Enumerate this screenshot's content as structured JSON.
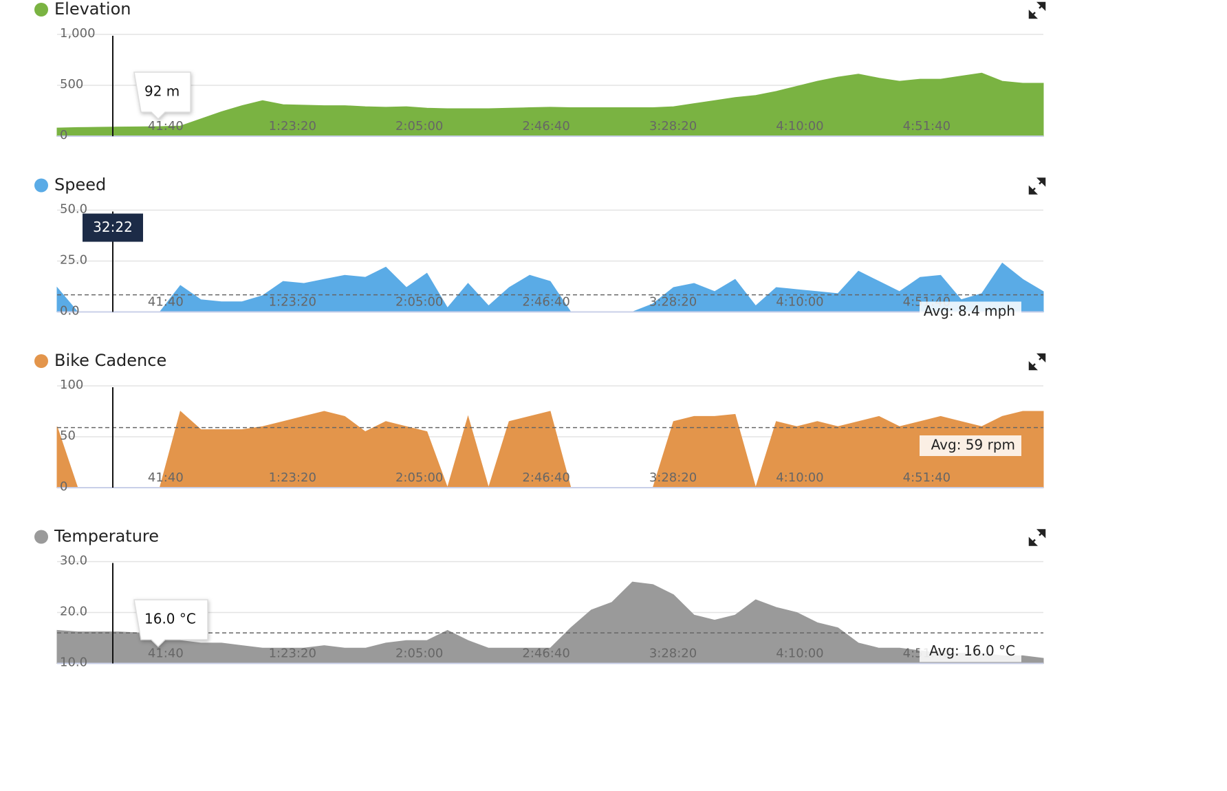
{
  "chart_data": [
    {
      "type": "area",
      "title": "Elevation",
      "color": "#7ab342",
      "x": [
        360,
        765,
        1170,
        1575,
        1980,
        2385,
        2790,
        3195,
        3600,
        4005,
        4410,
        4815,
        5220,
        5625,
        6030,
        6435,
        6840,
        7245,
        7650,
        8055,
        8460,
        8865,
        9270,
        9675,
        10080,
        10485,
        10890,
        11295,
        11700,
        12105,
        12510,
        12915,
        13320,
        13725,
        14130,
        14535,
        14940,
        15345,
        15750,
        16155,
        16560,
        16965,
        17370,
        17775,
        18180,
        18585,
        18990,
        19395,
        19800
      ],
      "values": [
        80,
        85,
        88,
        90,
        92,
        95,
        100,
        170,
        240,
        300,
        350,
        310,
        305,
        300,
        300,
        290,
        285,
        290,
        275,
        270,
        270,
        270,
        275,
        280,
        285,
        280,
        280,
        280,
        280,
        280,
        290,
        320,
        350,
        380,
        400,
        440,
        490,
        540,
        580,
        610,
        570,
        540,
        560,
        560,
        590,
        620,
        540,
        520,
        520
      ],
      "xlim": [
        360,
        19800
      ],
      "xticks": [
        {
          "value": 2500,
          "label": "41:40"
        },
        {
          "value": 5000,
          "label": "1:23:20"
        },
        {
          "value": 7500,
          "label": "2:05:00"
        },
        {
          "value": 10000,
          "label": "2:46:40"
        },
        {
          "value": 12500,
          "label": "3:28:20"
        },
        {
          "value": 15000,
          "label": "4:10:00"
        },
        {
          "value": 17500,
          "label": "4:51:40"
        }
      ],
      "ylim": [
        0,
        1000
      ],
      "yticks": [
        0,
        500,
        {
          "value": 1000,
          "label": "1,000"
        }
      ],
      "grid": true,
      "tooltip": "92 m"
    },
    {
      "type": "area",
      "title": "Speed",
      "color": "#5aabe6",
      "x": [
        360,
        765,
        1170,
        1575,
        1980,
        2385,
        2790,
        3195,
        3600,
        4005,
        4410,
        4815,
        5220,
        5625,
        6030,
        6435,
        6840,
        7245,
        7650,
        8055,
        8460,
        8865,
        9270,
        9675,
        10080,
        10485,
        10890,
        11295,
        11700,
        12105,
        12510,
        12915,
        13320,
        13725,
        14130,
        14535,
        14940,
        15345,
        15750,
        16155,
        16560,
        16965,
        17370,
        17775,
        18180,
        18585,
        18990,
        19395,
        19800
      ],
      "values": [
        12,
        0,
        0,
        0,
        0,
        0,
        13,
        6,
        5,
        5,
        8,
        15,
        14,
        16,
        18,
        17,
        22,
        12,
        19,
        2,
        14,
        3,
        12,
        18,
        15,
        0,
        0,
        0,
        0,
        4,
        12,
        14,
        10,
        16,
        3,
        12,
        11,
        10,
        9,
        20,
        15,
        10,
        17,
        18,
        6,
        9,
        24,
        16,
        10
      ],
      "xlim": [
        360,
        19800
      ],
      "xticks": [
        {
          "value": 2500,
          "label": "41:40"
        },
        {
          "value": 5000,
          "label": "1:23:20"
        },
        {
          "value": 7500,
          "label": "2:05:00"
        },
        {
          "value": 10000,
          "label": "2:46:40"
        },
        {
          "value": 12500,
          "label": "3:28:20"
        },
        {
          "value": 15000,
          "label": "4:10:00"
        },
        {
          "value": 17500,
          "label": "4:51:40"
        }
      ],
      "ylim": [
        0,
        50
      ],
      "yticks": [
        {
          "value": 0,
          "label": "0.0"
        },
        {
          "value": 25,
          "label": "25.0"
        },
        {
          "value": 50,
          "label": "50.0"
        }
      ],
      "grid": true,
      "tooltip": "32:22",
      "avg": 8.4,
      "avg_label": "Avg: 8.4 mph"
    },
    {
      "type": "area",
      "title": "Bike Cadence",
      "color": "#e3954b",
      "x": [
        360,
        765,
        1170,
        1575,
        1980,
        2385,
        2790,
        3195,
        3600,
        4005,
        4410,
        4815,
        5220,
        5625,
        6030,
        6435,
        6840,
        7245,
        7650,
        8055,
        8460,
        8865,
        9270,
        9675,
        10080,
        10485,
        10890,
        11295,
        11700,
        12105,
        12510,
        12915,
        13320,
        13725,
        14130,
        14535,
        14940,
        15345,
        15750,
        16155,
        16560,
        16965,
        17370,
        17775,
        18180,
        18585,
        18990,
        19395,
        19800
      ],
      "values": [
        60,
        0,
        0,
        0,
        0,
        0,
        75,
        57,
        57,
        57,
        60,
        65,
        70,
        75,
        70,
        55,
        65,
        60,
        55,
        0,
        70,
        0,
        65,
        70,
        75,
        0,
        0,
        0,
        0,
        0,
        65,
        70,
        70,
        72,
        0,
        65,
        60,
        65,
        60,
        65,
        70,
        60,
        65,
        70,
        65,
        60,
        70,
        75,
        75
      ],
      "xlim": [
        360,
        19800
      ],
      "xticks": [
        {
          "value": 2500,
          "label": "41:40"
        },
        {
          "value": 5000,
          "label": "1:23:20"
        },
        {
          "value": 7500,
          "label": "2:05:00"
        },
        {
          "value": 10000,
          "label": "2:46:40"
        },
        {
          "value": 12500,
          "label": "3:28:20"
        },
        {
          "value": 15000,
          "label": "4:10:00"
        },
        {
          "value": 17500,
          "label": "4:51:40"
        }
      ],
      "ylim": [
        0,
        100
      ],
      "yticks": [
        0,
        50,
        100
      ],
      "grid": true,
      "avg": 59,
      "avg_label": "Avg: 59 rpm"
    },
    {
      "type": "area",
      "title": "Temperature",
      "color": "#9a9a9a",
      "x": [
        360,
        765,
        1170,
        1575,
        1980,
        2385,
        2790,
        3195,
        3600,
        4005,
        4410,
        4815,
        5220,
        5625,
        6030,
        6435,
        6840,
        7245,
        7650,
        8055,
        8460,
        8865,
        9270,
        9675,
        10080,
        10485,
        10890,
        11295,
        11700,
        12105,
        12510,
        12915,
        13320,
        13725,
        14130,
        14535,
        14940,
        15345,
        15750,
        16155,
        16560,
        16965,
        17370,
        17775,
        18180,
        18585,
        18990,
        19395,
        19800
      ],
      "values": [
        16.5,
        16.2,
        16.2,
        16.2,
        16,
        16,
        14.5,
        14,
        14,
        13.5,
        13,
        13,
        13,
        13.5,
        13,
        13,
        14,
        14.5,
        14.5,
        16.5,
        14.5,
        13,
        13,
        13,
        13,
        17,
        20.5,
        22,
        26,
        25.5,
        23.5,
        19.5,
        18.5,
        19.5,
        22.5,
        21,
        20,
        18,
        17,
        14,
        13,
        13,
        12.5,
        12,
        12,
        12,
        11.5,
        11.5,
        11
      ],
      "xlim": [
        360,
        19800
      ],
      "xticks": [
        {
          "value": 2500,
          "label": "41:40"
        },
        {
          "value": 5000,
          "label": "1:23:20"
        },
        {
          "value": 7500,
          "label": "2:05:00"
        },
        {
          "value": 10000,
          "label": "2:46:40"
        },
        {
          "value": 12500,
          "label": "3:28:20"
        },
        {
          "value": 15000,
          "label": "4:10:00"
        },
        {
          "value": 17500,
          "label": "4:51:40"
        }
      ],
      "ylim": [
        10,
        30
      ],
      "yticks": [
        {
          "value": 10,
          "label": "10.0"
        },
        {
          "value": 20,
          "label": "20.0"
        },
        {
          "value": 30,
          "label": "30.0"
        }
      ],
      "grid": true,
      "tooltip": "16.0 °C",
      "avg": 16,
      "avg_label": "Avg: 16.0 °C"
    }
  ]
}
